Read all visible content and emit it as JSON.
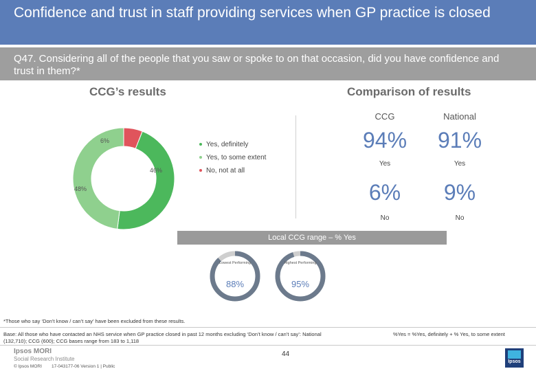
{
  "header": {
    "title": "Confidence and trust in staff providing services when GP practice is closed"
  },
  "question": {
    "text": "Q47. Considering all of the people that you saw or spoke to on that occasion, did you have confidence and trust in them?*"
  },
  "ccg_results": {
    "heading": "CCG’s results"
  },
  "comparison": {
    "heading": "Comparison of results",
    "col_ccg": "CCG",
    "col_national": "National",
    "yes_ccg": "94%",
    "yes_national": "91%",
    "yes_label": "Yes",
    "no_ccg": "6%",
    "no_national": "9%",
    "no_label": "No"
  },
  "chart_data": {
    "type": "pie",
    "donut": true,
    "categories": [
      "Yes, definitely",
      "Yes, to some extent",
      "No, not at all"
    ],
    "values": [
      46,
      48,
      6
    ],
    "labels": [
      "46%",
      "48%",
      "6%"
    ],
    "colors": [
      "#4cb85c",
      "#8fd08e",
      "#e0545c"
    ],
    "legend_position": "right"
  },
  "range": {
    "label": "Local CCG range – % Yes",
    "lowest_label": "Lowest Performing",
    "lowest_value": "88%",
    "lowest_pct": 88,
    "highest_label": "Highest Performing",
    "highest_value": "95%",
    "highest_pct": 95,
    "ring_color": "#6c7a8c",
    "ring_track": "#cfcfcf"
  },
  "footer": {
    "note": "*Those who say ‘Don’t know / can’t say’ have been excluded from these results.",
    "base": "Base: All those who have contacted an NHS service when GP practice closed in past 12 months excluding ‘Don’t know / can’t say’: National (132,710); CCG (600); CCG bases range from 183 to 1,118",
    "formula": "%Yes = %Yes, definitely + % Yes, to some extent",
    "page_number": "44",
    "brand_line1": "Ipsos MORI",
    "brand_line2": "Social Research Institute",
    "copyright": "© Ipsos MORI",
    "version": "17-043177-06 Version 1 | Public",
    "logo_text": "Ipsos"
  }
}
